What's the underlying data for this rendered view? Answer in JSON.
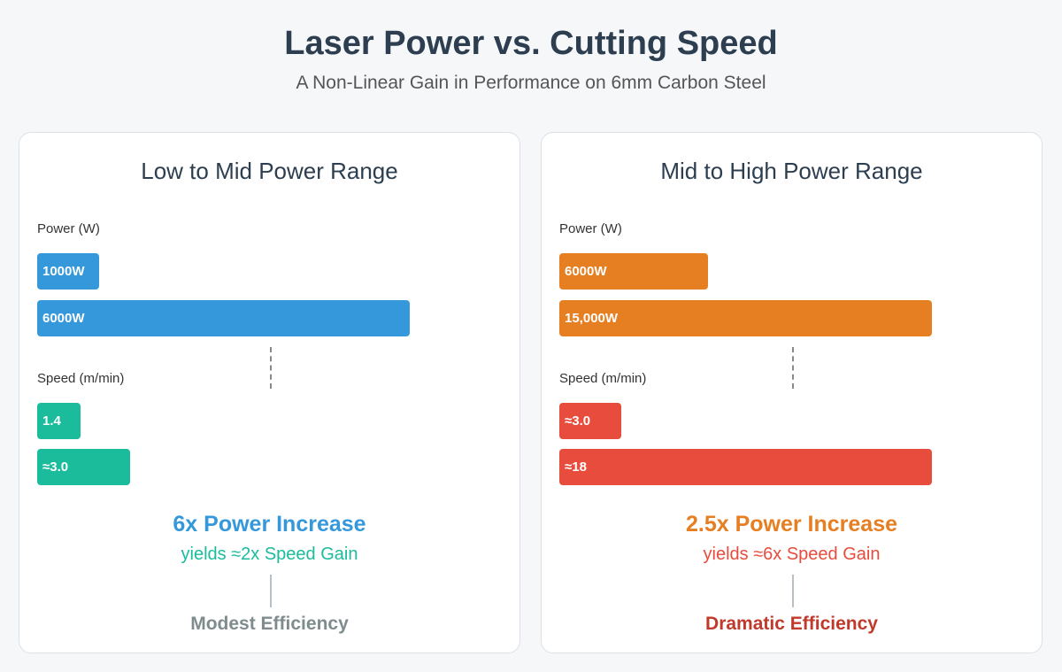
{
  "title": "Laser Power vs. Cutting Speed",
  "subtitle": "A Non-Linear Gain in Performance on 6mm Carbon Steel",
  "chart_data": [
    {
      "type": "bar",
      "title": "Low to Mid Power Range",
      "power": {
        "label": "Power (W)",
        "values": [
          1000,
          6000
        ],
        "labels": [
          "1000W",
          "6000W"
        ],
        "max": 6000,
        "color": "#3498db"
      },
      "speed": {
        "label": "Speed (m/min)",
        "values": [
          1.4,
          3.0
        ],
        "labels": [
          "1.4",
          "≈3.0"
        ],
        "max": 12,
        "color": "#1abc9c"
      },
      "increase": "6x Power Increase",
      "yields": "yields ≈2x Speed Gain",
      "efficiency": "Modest Efficiency",
      "increase_color": "#3498db",
      "yields_color": "#1abc9c",
      "efficiency_color": "#7f8c8d"
    },
    {
      "type": "bar",
      "title": "Mid to High Power Range",
      "power": {
        "label": "Power (W)",
        "values": [
          6000,
          15000
        ],
        "labels": [
          "6000W",
          "15,000W"
        ],
        "max": 15000,
        "color": "#e67e22"
      },
      "speed": {
        "label": "Speed (m/min)",
        "values": [
          3.0,
          18
        ],
        "labels": [
          "≈3.0",
          "≈18"
        ],
        "max": 18,
        "color": "#e74c3c"
      },
      "increase": "2.5x Power Increase",
      "yields": "yields ≈6x Speed Gain",
      "efficiency": "Dramatic Efficiency",
      "increase_color": "#e67e22",
      "yields_color": "#e74c3c",
      "efficiency_color": "#c0392b"
    }
  ]
}
